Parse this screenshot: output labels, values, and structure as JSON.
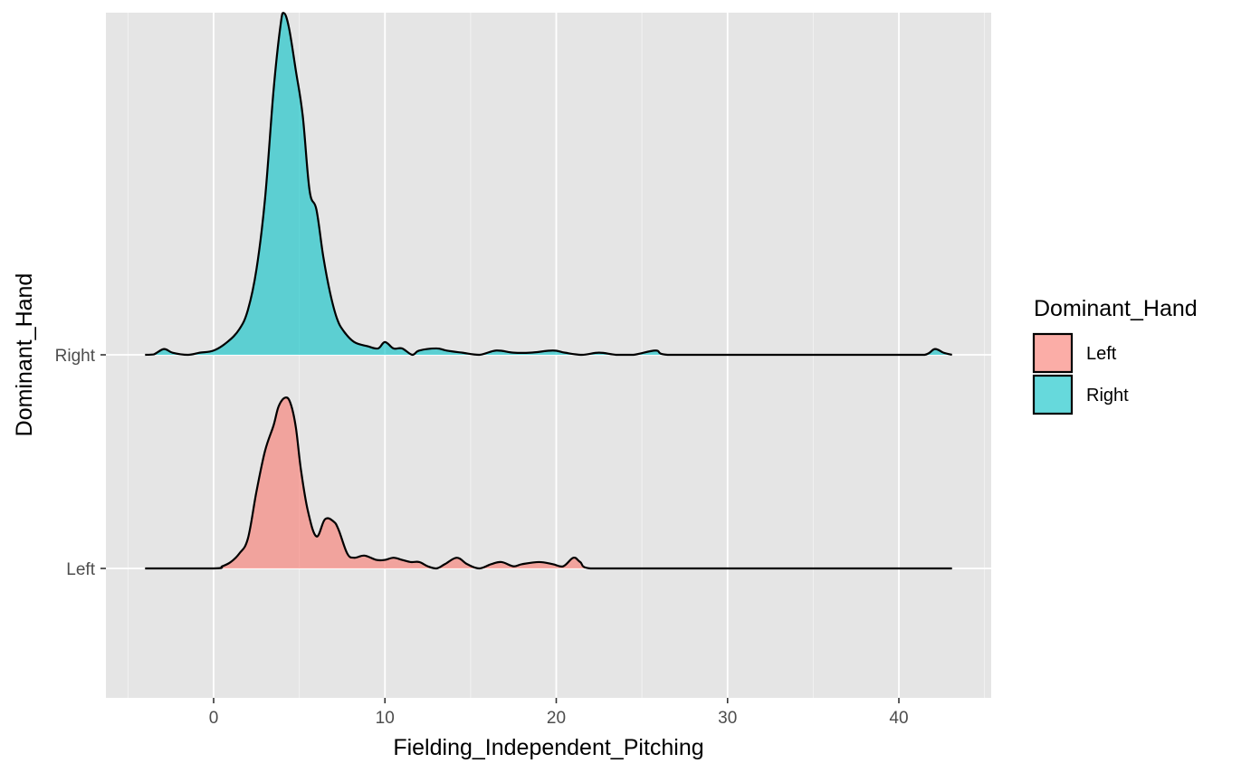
{
  "chart_data": {
    "type": "area",
    "subtype": "ridgeline-density",
    "xlabel": "Fielding_Independent_Pitching",
    "ylabel": "Dominant_Hand",
    "xlim": [
      -6.3,
      45.4
    ],
    "xticks": [
      0,
      10,
      20,
      30,
      40
    ],
    "x_minor_ticks": [
      -5,
      5,
      15,
      25,
      35,
      45
    ],
    "categories": [
      "Left",
      "Right"
    ],
    "grid": true,
    "background": "#e5e5e5",
    "legend": {
      "title": "Dominant_Hand",
      "placement": "right",
      "entries": [
        "Left",
        "Right"
      ]
    },
    "ridge_scale_note_units": "curve y-values are in units of category spacing (1 = distance between adjacent baselines)",
    "series": [
      {
        "name": "Left",
        "baseline_category": "Left",
        "fill": "#f8766d",
        "fill_opacity": 0.6,
        "points": [
          [
            -4,
            0
          ],
          [
            0,
            0
          ],
          [
            0.5,
            0.01
          ],
          [
            1.0,
            0.03
          ],
          [
            1.5,
            0.07
          ],
          [
            2.0,
            0.14
          ],
          [
            2.5,
            0.36
          ],
          [
            3.0,
            0.55
          ],
          [
            3.5,
            0.67
          ],
          [
            3.8,
            0.76
          ],
          [
            4.2,
            0.8
          ],
          [
            4.5,
            0.77
          ],
          [
            4.8,
            0.66
          ],
          [
            5.1,
            0.46
          ],
          [
            5.5,
            0.27
          ],
          [
            6.0,
            0.15
          ],
          [
            6.5,
            0.23
          ],
          [
            7.0,
            0.22
          ],
          [
            7.3,
            0.18
          ],
          [
            7.8,
            0.07
          ],
          [
            8.2,
            0.05
          ],
          [
            8.8,
            0.06
          ],
          [
            9.5,
            0.04
          ],
          [
            10.0,
            0.04
          ],
          [
            10.5,
            0.05
          ],
          [
            11.0,
            0.04
          ],
          [
            11.5,
            0.03
          ],
          [
            12.0,
            0.03
          ],
          [
            12.5,
            0.01
          ],
          [
            13.0,
            0.0
          ],
          [
            13.5,
            0.02
          ],
          [
            14.2,
            0.05
          ],
          [
            14.8,
            0.02
          ],
          [
            15.5,
            0.0
          ],
          [
            16.2,
            0.02
          ],
          [
            16.8,
            0.03
          ],
          [
            17.5,
            0.01
          ],
          [
            18.0,
            0.02
          ],
          [
            19.0,
            0.03
          ],
          [
            19.8,
            0.02
          ],
          [
            20.4,
            0.01
          ],
          [
            21.0,
            0.05
          ],
          [
            21.4,
            0.03
          ],
          [
            22.0,
            0.0
          ],
          [
            25,
            0
          ],
          [
            30,
            0
          ],
          [
            35,
            0
          ],
          [
            40,
            0
          ],
          [
            43.1,
            0
          ]
        ]
      },
      {
        "name": "Right",
        "baseline_category": "Right",
        "fill": "#00bfc4",
        "fill_opacity": 0.6,
        "points": [
          [
            -4,
            0
          ],
          [
            -3.5,
            0.002
          ],
          [
            -2.9,
            0.027
          ],
          [
            -2.4,
            0.01
          ],
          [
            -1.5,
            0.0
          ],
          [
            -0.8,
            0.01
          ],
          [
            0.0,
            0.02
          ],
          [
            0.8,
            0.06
          ],
          [
            1.5,
            0.12
          ],
          [
            2.0,
            0.21
          ],
          [
            2.5,
            0.4
          ],
          [
            3.0,
            0.73
          ],
          [
            3.5,
            1.24
          ],
          [
            3.9,
            1.54
          ],
          [
            4.1,
            1.6
          ],
          [
            4.4,
            1.53
          ],
          [
            4.8,
            1.33
          ],
          [
            5.2,
            1.12
          ],
          [
            5.6,
            0.77
          ],
          [
            6.0,
            0.68
          ],
          [
            6.4,
            0.46
          ],
          [
            6.8,
            0.29
          ],
          [
            7.2,
            0.17
          ],
          [
            7.6,
            0.11
          ],
          [
            8.2,
            0.06
          ],
          [
            9.0,
            0.04
          ],
          [
            9.6,
            0.03
          ],
          [
            10.0,
            0.06
          ],
          [
            10.5,
            0.03
          ],
          [
            11.0,
            0.03
          ],
          [
            11.6,
            0.0
          ],
          [
            12.0,
            0.02
          ],
          [
            13.0,
            0.03
          ],
          [
            13.6,
            0.02
          ],
          [
            14.5,
            0.01
          ],
          [
            15.5,
            0.0
          ],
          [
            16.5,
            0.02
          ],
          [
            17.5,
            0.01
          ],
          [
            18.5,
            0.01
          ],
          [
            19.8,
            0.02
          ],
          [
            20.5,
            0.01
          ],
          [
            21.5,
            0.0
          ],
          [
            22.5,
            0.01
          ],
          [
            23.5,
            0.0
          ],
          [
            24.5,
            0.0
          ],
          [
            25.8,
            0.02
          ],
          [
            26.5,
            0.0
          ],
          [
            30,
            0
          ],
          [
            35,
            0
          ],
          [
            40,
            0
          ],
          [
            41.5,
            0.0
          ],
          [
            42.1,
            0.027
          ],
          [
            42.6,
            0.01
          ],
          [
            43.1,
            0
          ]
        ]
      }
    ]
  }
}
